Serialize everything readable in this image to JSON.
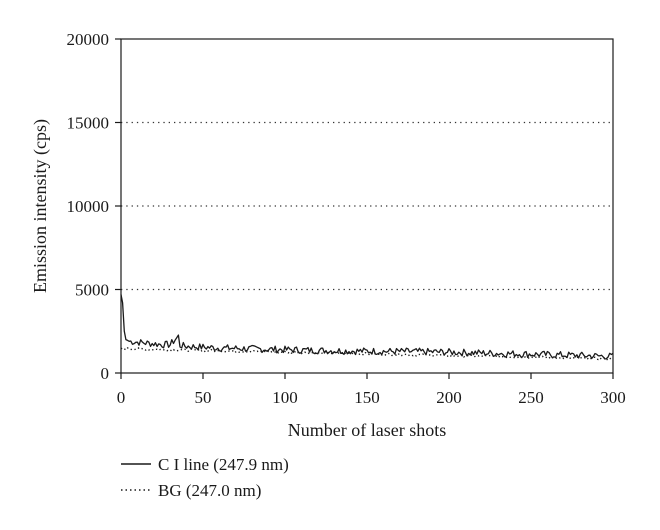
{
  "chart_data": {
    "type": "line",
    "xlabel": "Number of laser shots",
    "ylabel": "Emission intensity (cps)",
    "xlim": [
      0,
      300
    ],
    "ylim": [
      0,
      20000
    ],
    "x_ticks": [
      "0",
      "50",
      "100",
      "150",
      "200",
      "250",
      "300"
    ],
    "y_ticks": [
      "0",
      "5000",
      "10000",
      "15000",
      "20000"
    ],
    "grid": "horizontal dotted at 5000, 10000, 15000",
    "legend_position": "bottom-left, below axes",
    "series": [
      {
        "name": "C I line (247.9 nm)",
        "style": "solid",
        "color": "#1a1a1a",
        "x": [
          0,
          1,
          2,
          3,
          5,
          10,
          15,
          20,
          25,
          30,
          35,
          36,
          40,
          50,
          60,
          70,
          80,
          90,
          100,
          120,
          140,
          160,
          180,
          200,
          220,
          240,
          260,
          280,
          300
        ],
        "y": [
          4700,
          4200,
          2500,
          2000,
          1900,
          1850,
          1800,
          1750,
          1700,
          1700,
          2200,
          1650,
          1600,
          1550,
          1500,
          1480,
          1450,
          1420,
          1400,
          1350,
          1320,
          1300,
          1280,
          1250,
          1200,
          1150,
          1100,
          1050,
          1000
        ]
      },
      {
        "name": "BG (247.0 nm)",
        "style": "dotted",
        "color": "#1a1a1a",
        "x": [
          0,
          10,
          25,
          50,
          75,
          100,
          125,
          150,
          175,
          200,
          225,
          250,
          275,
          300
        ],
        "y": [
          1450,
          1450,
          1400,
          1350,
          1300,
          1250,
          1200,
          1150,
          1100,
          1050,
          1000,
          950,
          900,
          850
        ]
      }
    ]
  }
}
